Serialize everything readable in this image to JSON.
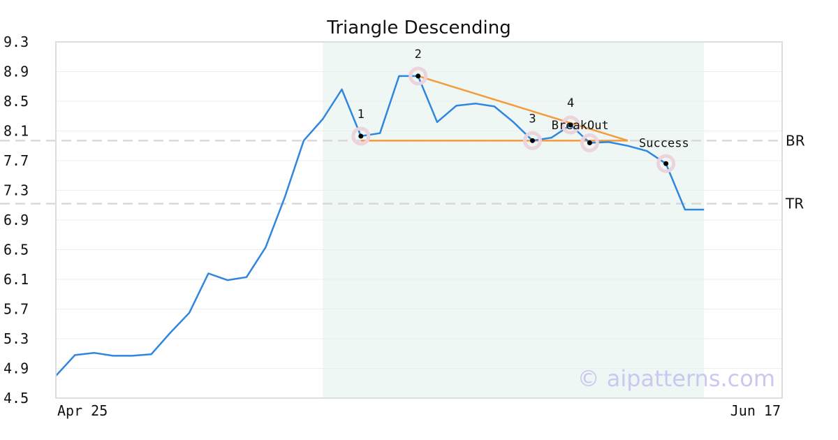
{
  "chart_data": {
    "type": "line",
    "title": "Triangle Descending",
    "watermark": "© aipatterns.com",
    "x_tick_labels": [
      "Apr 25",
      "Jun 17"
    ],
    "ylim": [
      4.5,
      9.3
    ],
    "y_ticks": [
      "9.3",
      "8.9",
      "8.5",
      "8.1",
      "7.7",
      "7.3",
      "6.9",
      "6.5",
      "6.1",
      "5.7",
      "5.3",
      "4.9",
      "4.5"
    ],
    "grid": "horizontal",
    "colors": {
      "price": "#2f86e0",
      "pattern": "#f39c3c",
      "shade": "#eef7f3",
      "refline": "#d9d9d9",
      "marker_halo": "#ecd3dc"
    },
    "series": [
      {
        "values": [
          4.8,
          5.08,
          5.11,
          5.07,
          5.07,
          5.09,
          5.38,
          5.65,
          6.18,
          6.09,
          6.13,
          6.53,
          7.2,
          7.97,
          8.26,
          8.66,
          8.03,
          8.07,
          8.84,
          8.84,
          8.22,
          8.44,
          8.47,
          8.43,
          8.22,
          7.97,
          8.01,
          8.18,
          7.94,
          7.95,
          7.9,
          7.83,
          7.66,
          7.04,
          7.04
        ]
      }
    ],
    "shaded_range": {
      "from": 14,
      "to": 34
    },
    "reference_lines": [
      {
        "label": "BR",
        "y": 7.97
      },
      {
        "label": "TR",
        "y": 7.12
      }
    ],
    "pattern_lines": [
      {
        "from": [
          16,
          7.97
        ],
        "to": [
          30,
          7.97
        ]
      },
      {
        "from": [
          19,
          8.84
        ],
        "to": [
          30,
          7.97
        ]
      }
    ],
    "points": [
      {
        "x": 16,
        "y": 8.03,
        "label": "1"
      },
      {
        "x": 19,
        "y": 8.84,
        "label": "2"
      },
      {
        "x": 25,
        "y": 7.97,
        "label": "3"
      },
      {
        "x": 27,
        "y": 8.18,
        "label": "4"
      },
      {
        "x": 28,
        "y": 7.94,
        "label": ""
      },
      {
        "x": 32,
        "y": 7.66,
        "label": ""
      }
    ],
    "annotations": [
      {
        "text": "BreakOut",
        "x": 27.5,
        "y": 8.18
      },
      {
        "text": "Success",
        "x": 31.9,
        "y": 7.94
      }
    ]
  }
}
